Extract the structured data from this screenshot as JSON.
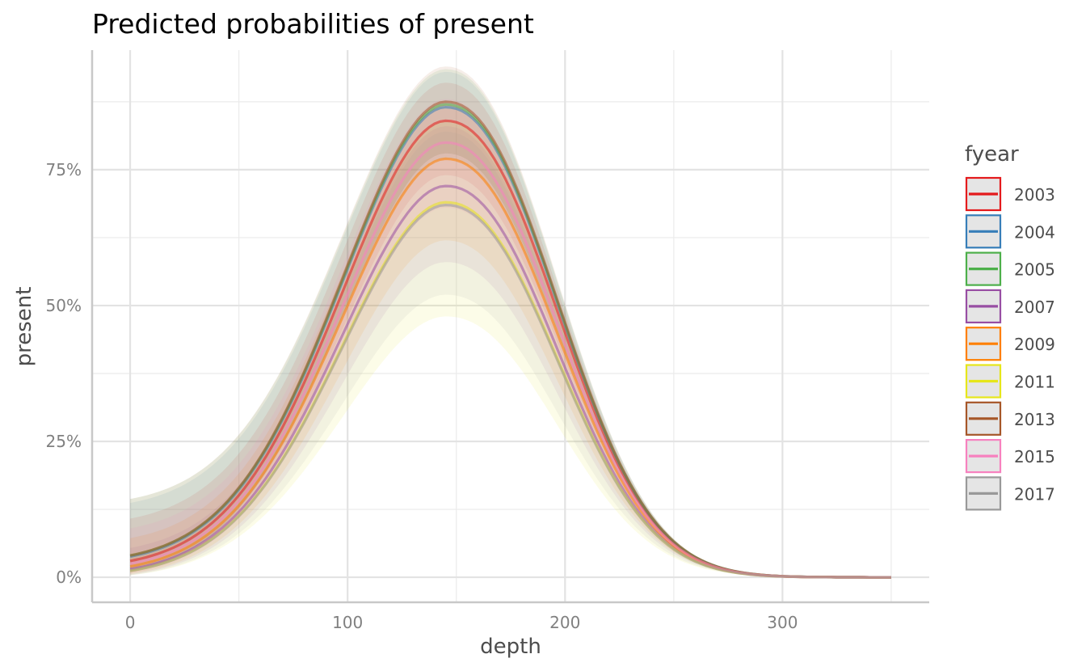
{
  "chart_data": {
    "type": "line",
    "title": "Predicted probabilities of present",
    "xlabel": "depth",
    "ylabel": "present",
    "xlim": [
      -17.5,
      367.5
    ],
    "ylim": [
      -0.046,
      0.97
    ],
    "x_ticks": [
      0,
      100,
      200,
      300
    ],
    "x_tick_labels": [
      "0",
      "100",
      "200",
      "300"
    ],
    "y_ticks": [
      0,
      0.25,
      0.5,
      0.75
    ],
    "y_tick_labels": [
      "0%",
      "25%",
      "50%",
      "75%"
    ],
    "grid": true,
    "legend_position": "right",
    "legend_title": "fyear",
    "x": [
      0,
      10,
      20,
      30,
      40,
      50,
      60,
      70,
      80,
      90,
      100,
      110,
      120,
      130,
      140,
      145,
      150,
      160,
      170,
      180,
      190,
      200,
      210,
      220,
      230,
      240,
      250,
      260,
      270,
      280,
      290,
      300,
      310,
      320,
      330,
      340,
      350
    ],
    "curve_model": {
      "peak_depth": 145,
      "width_left": 48,
      "width_right": 47,
      "left_shape": 1.9,
      "right_shape": 2.2,
      "note_free": true
    },
    "series": [
      {
        "name": "2003",
        "color": "#E41A1C",
        "peak": 0.84,
        "start": 0.03,
        "lower_peak": 0.74,
        "upper_peak": 0.91
      },
      {
        "name": "2004",
        "color": "#377EB8",
        "peak": 0.865,
        "start": 0.038,
        "lower_peak": 0.77,
        "upper_peak": 0.93
      },
      {
        "name": "2005",
        "color": "#4DAF4A",
        "peak": 0.87,
        "start": 0.04,
        "lower_peak": 0.78,
        "upper_peak": 0.935
      },
      {
        "name": "2007",
        "color": "#984EA3",
        "peak": 0.72,
        "start": 0.015,
        "lower_peak": 0.58,
        "upper_peak": 0.83
      },
      {
        "name": "2009",
        "color": "#FF7F00",
        "peak": 0.77,
        "start": 0.02,
        "lower_peak": 0.62,
        "upper_peak": 0.87
      },
      {
        "name": "2011",
        "color": "#E6E61A",
        "peak": 0.69,
        "start": 0.012,
        "lower_peak": 0.48,
        "upper_peak": 0.84
      },
      {
        "name": "2013",
        "color": "#A65628",
        "peak": 0.875,
        "start": 0.04,
        "lower_peak": 0.78,
        "upper_peak": 0.94
      },
      {
        "name": "2015",
        "color": "#F781BF",
        "peak": 0.8,
        "start": 0.025,
        "lower_peak": 0.68,
        "upper_peak": 0.88
      },
      {
        "name": "2017",
        "color": "#999999",
        "peak": 0.685,
        "start": 0.012,
        "lower_peak": 0.52,
        "upper_peak": 0.82
      }
    ]
  }
}
